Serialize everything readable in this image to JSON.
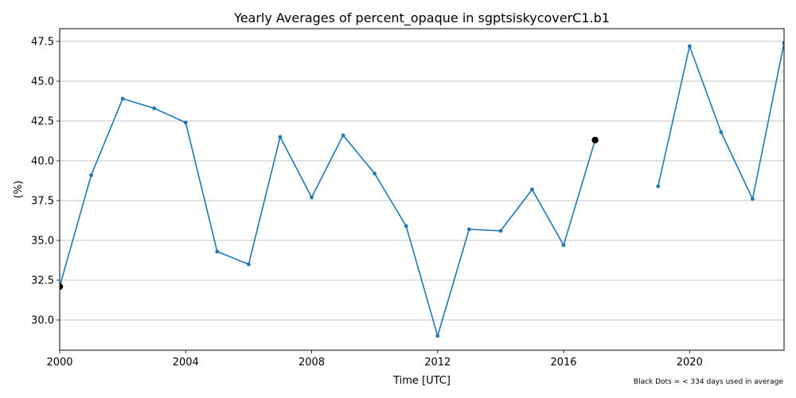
{
  "chart_data": {
    "type": "line",
    "title": "Yearly Averages of percent_opaque in sgptsiskycoverC1.b1",
    "xlabel": "Time [UTC]",
    "ylabel": "(%)",
    "footnote": "Black Dots = < 334 days used in average",
    "xlim": [
      2000,
      2023
    ],
    "ylim": [
      28.1,
      48.3
    ],
    "x_ticks": [
      2000,
      2004,
      2008,
      2012,
      2016,
      2020
    ],
    "y_ticks": [
      30.0,
      32.5,
      35.0,
      37.5,
      40.0,
      42.5,
      45.0,
      47.5
    ],
    "y_tick_labels": [
      "30.0",
      "32.5",
      "35.0",
      "37.5",
      "40.0",
      "42.5",
      "45.0",
      "47.5"
    ],
    "grid": "horizontal",
    "colors": {
      "line": "#1f77b4",
      "partial_marker": "#000000"
    },
    "series": [
      {
        "x": [
          2000,
          2001,
          2002,
          2003,
          2004,
          2005,
          2006,
          2007,
          2008,
          2009,
          2010,
          2011,
          2012,
          2013,
          2014,
          2015,
          2016,
          2017,
          2018,
          2019,
          2020,
          2021,
          2022,
          2023
        ],
        "values": [
          32.1,
          39.1,
          43.9,
          43.3,
          42.4,
          34.3,
          33.5,
          41.5,
          37.7,
          41.6,
          39.2,
          35.9,
          29.0,
          35.7,
          35.6,
          38.2,
          34.7,
          41.3,
          null,
          38.4,
          47.2,
          41.8,
          37.6,
          47.4
        ],
        "partial_years": [
          2000,
          2017
        ]
      }
    ]
  }
}
